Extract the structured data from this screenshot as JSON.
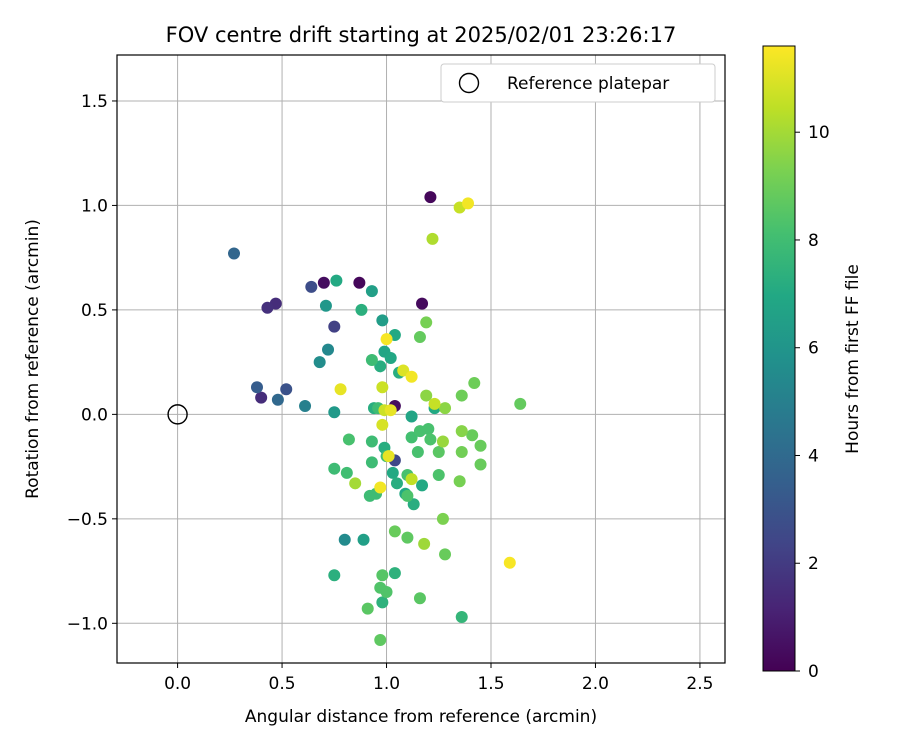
{
  "chart_data": {
    "type": "scatter",
    "title": "FOV centre drift starting at 2025/02/01 23:26:17",
    "xlabel": "Angular distance from reference (arcmin)",
    "ylabel": "Rotation from reference (arcmin)",
    "xlim": [
      -0.29,
      2.62
    ],
    "ylim": [
      -1.19,
      1.72
    ],
    "xticks": [
      0.0,
      0.5,
      1.0,
      1.5,
      2.0,
      2.5
    ],
    "xtick_labels": [
      "0.0",
      "0.5",
      "1.0",
      "1.5",
      "2.0",
      "2.5"
    ],
    "yticks": [
      -1.0,
      -0.5,
      0.0,
      0.5,
      1.0,
      1.5
    ],
    "ytick_labels": [
      "−1.0",
      "−0.5",
      "0.0",
      "0.5",
      "1.0",
      "1.5"
    ],
    "grid": true,
    "legend": {
      "position": "top-right",
      "entries": [
        "Reference platepar"
      ]
    },
    "reference_point": {
      "x": 0.0,
      "y": 0.0
    },
    "colorbar": {
      "label": "Hours from first FF file",
      "range": [
        0,
        11.6
      ],
      "ticks": [
        0,
        2,
        4,
        6,
        8,
        10
      ],
      "tick_labels": [
        "0",
        "2",
        "4",
        "6",
        "8",
        "10"
      ],
      "colormap": "viridis"
    },
    "points": [
      {
        "x": 1.21,
        "y": 1.04,
        "c": 0.2
      },
      {
        "x": 1.17,
        "y": 0.53,
        "c": 0.3
      },
      {
        "x": 0.87,
        "y": 0.63,
        "c": 0.2
      },
      {
        "x": 0.7,
        "y": 0.63,
        "c": 0.4
      },
      {
        "x": 1.04,
        "y": 0.04,
        "c": 0.4
      },
      {
        "x": 0.47,
        "y": 0.53,
        "c": 1.5
      },
      {
        "x": 0.43,
        "y": 0.51,
        "c": 1.6
      },
      {
        "x": 0.4,
        "y": 0.08,
        "c": 1.5
      },
      {
        "x": 0.75,
        "y": 0.42,
        "c": 2.2
      },
      {
        "x": 0.64,
        "y": 0.61,
        "c": 2.7
      },
      {
        "x": 0.52,
        "y": 0.12,
        "c": 2.9
      },
      {
        "x": 0.38,
        "y": 0.13,
        "c": 3.4
      },
      {
        "x": 0.27,
        "y": 0.77,
        "c": 3.8
      },
      {
        "x": 0.48,
        "y": 0.07,
        "c": 3.9
      },
      {
        "x": 1.04,
        "y": -0.22,
        "c": 2.5
      },
      {
        "x": 0.61,
        "y": 0.04,
        "c": 5.0
      },
      {
        "x": 0.72,
        "y": 0.31,
        "c": 5.4
      },
      {
        "x": 0.68,
        "y": 0.25,
        "c": 5.6
      },
      {
        "x": 0.8,
        "y": -0.6,
        "c": 5.5
      },
      {
        "x": 0.71,
        "y": 0.52,
        "c": 6.1
      },
      {
        "x": 0.75,
        "y": 0.01,
        "c": 6.2
      },
      {
        "x": 0.93,
        "y": 0.59,
        "c": 6.5
      },
      {
        "x": 0.98,
        "y": 0.45,
        "c": 6.4
      },
      {
        "x": 0.89,
        "y": -0.6,
        "c": 6.5
      },
      {
        "x": 0.76,
        "y": 0.64,
        "c": 7.0
      },
      {
        "x": 0.88,
        "y": 0.5,
        "c": 7.3
      },
      {
        "x": 1.04,
        "y": 0.38,
        "c": 7.0
      },
      {
        "x": 0.99,
        "y": 0.3,
        "c": 6.8
      },
      {
        "x": 1.02,
        "y": 0.27,
        "c": 6.9
      },
      {
        "x": 0.97,
        "y": 0.23,
        "c": 7.2
      },
      {
        "x": 0.94,
        "y": 0.03,
        "c": 7.2
      },
      {
        "x": 1.12,
        "y": -0.01,
        "c": 6.8
      },
      {
        "x": 1.23,
        "y": 0.03,
        "c": 7.0
      },
      {
        "x": 0.99,
        "y": -0.16,
        "c": 7.2
      },
      {
        "x": 1.03,
        "y": -0.28,
        "c": 7.0
      },
      {
        "x": 1.05,
        "y": -0.33,
        "c": 7.2
      },
      {
        "x": 1.09,
        "y": -0.38,
        "c": 7.0
      },
      {
        "x": 1.13,
        "y": -0.43,
        "c": 7.2
      },
      {
        "x": 1.17,
        "y": -0.34,
        "c": 7.0
      },
      {
        "x": 1.06,
        "y": 0.2,
        "c": 7.2
      },
      {
        "x": 0.75,
        "y": -0.77,
        "c": 7.3
      },
      {
        "x": 0.98,
        "y": -0.9,
        "c": 7.4
      },
      {
        "x": 1.04,
        "y": -0.76,
        "c": 7.4
      },
      {
        "x": 1.36,
        "y": -0.97,
        "c": 7.6
      },
      {
        "x": 0.93,
        "y": 0.26,
        "c": 7.9
      },
      {
        "x": 0.96,
        "y": 0.03,
        "c": 7.9
      },
      {
        "x": 0.93,
        "y": -0.13,
        "c": 7.9
      },
      {
        "x": 0.93,
        "y": -0.23,
        "c": 7.9
      },
      {
        "x": 0.95,
        "y": -0.38,
        "c": 7.9
      },
      {
        "x": 0.92,
        "y": -0.39,
        "c": 7.9
      },
      {
        "x": 0.75,
        "y": -0.26,
        "c": 7.9
      },
      {
        "x": 0.81,
        "y": -0.28,
        "c": 8.0
      },
      {
        "x": 0.82,
        "y": -0.12,
        "c": 8.2
      },
      {
        "x": 1.0,
        "y": -0.2,
        "c": 8.0
      },
      {
        "x": 1.1,
        "y": -0.29,
        "c": 8.2
      },
      {
        "x": 1.12,
        "y": -0.11,
        "c": 8.1
      },
      {
        "x": 1.16,
        "y": -0.08,
        "c": 8.2
      },
      {
        "x": 1.2,
        "y": -0.07,
        "c": 8.2
      },
      {
        "x": 1.15,
        "y": -0.18,
        "c": 8.2
      },
      {
        "x": 1.21,
        "y": -0.12,
        "c": 8.3
      },
      {
        "x": 1.25,
        "y": -0.29,
        "c": 8.3
      },
      {
        "x": 1.25,
        "y": -0.18,
        "c": 8.6
      },
      {
        "x": 1.1,
        "y": -0.39,
        "c": 8.3
      },
      {
        "x": 0.98,
        "y": -0.77,
        "c": 8.5
      },
      {
        "x": 0.97,
        "y": -0.83,
        "c": 8.4
      },
      {
        "x": 1.0,
        "y": -0.85,
        "c": 8.4
      },
      {
        "x": 0.91,
        "y": -0.93,
        "c": 8.6
      },
      {
        "x": 0.97,
        "y": -1.08,
        "c": 8.7
      },
      {
        "x": 1.16,
        "y": -0.88,
        "c": 8.6
      },
      {
        "x": 1.1,
        "y": -0.59,
        "c": 8.7
      },
      {
        "x": 1.04,
        "y": -0.56,
        "c": 8.9
      },
      {
        "x": 1.28,
        "y": -0.67,
        "c": 8.9
      },
      {
        "x": 1.16,
        "y": 0.37,
        "c": 8.8
      },
      {
        "x": 1.19,
        "y": 0.44,
        "c": 9.2
      },
      {
        "x": 1.36,
        "y": 0.09,
        "c": 9.0
      },
      {
        "x": 1.42,
        "y": 0.15,
        "c": 9.0
      },
      {
        "x": 1.64,
        "y": 0.05,
        "c": 8.8
      },
      {
        "x": 1.41,
        "y": -0.1,
        "c": 8.9
      },
      {
        "x": 1.45,
        "y": -0.15,
        "c": 8.9
      },
      {
        "x": 1.45,
        "y": -0.24,
        "c": 8.9
      },
      {
        "x": 1.36,
        "y": -0.18,
        "c": 9.1
      },
      {
        "x": 1.35,
        "y": -0.32,
        "c": 9.2
      },
      {
        "x": 1.27,
        "y": -0.5,
        "c": 9.3
      },
      {
        "x": 1.36,
        "y": -0.08,
        "c": 9.5
      },
      {
        "x": 1.28,
        "y": 0.03,
        "c": 9.6
      },
      {
        "x": 1.19,
        "y": 0.09,
        "c": 9.6
      },
      {
        "x": 1.27,
        "y": -0.13,
        "c": 9.8
      },
      {
        "x": 1.18,
        "y": -0.62,
        "c": 9.9
      },
      {
        "x": 1.22,
        "y": 0.84,
        "c": 10.2
      },
      {
        "x": 0.85,
        "y": -0.33,
        "c": 10.0
      },
      {
        "x": 1.35,
        "y": 0.99,
        "c": 10.6
      },
      {
        "x": 1.12,
        "y": -0.31,
        "c": 10.5
      },
      {
        "x": 1.23,
        "y": 0.05,
        "c": 10.6
      },
      {
        "x": 0.98,
        "y": 0.13,
        "c": 10.7
      },
      {
        "x": 0.99,
        "y": 0.02,
        "c": 10.7
      },
      {
        "x": 0.98,
        "y": -0.05,
        "c": 10.9
      },
      {
        "x": 1.08,
        "y": 0.21,
        "c": 11.0
      },
      {
        "x": 1.01,
        "y": -0.2,
        "c": 11.2
      },
      {
        "x": 1.02,
        "y": 0.02,
        "c": 11.2
      },
      {
        "x": 1.12,
        "y": 0.18,
        "c": 11.4
      },
      {
        "x": 0.78,
        "y": 0.12,
        "c": 11.2
      },
      {
        "x": 1.39,
        "y": 1.01,
        "c": 11.4
      },
      {
        "x": 0.97,
        "y": -0.35,
        "c": 11.4
      },
      {
        "x": 1.0,
        "y": 0.36,
        "c": 11.5
      },
      {
        "x": 1.59,
        "y": -0.71,
        "c": 11.5
      }
    ]
  }
}
